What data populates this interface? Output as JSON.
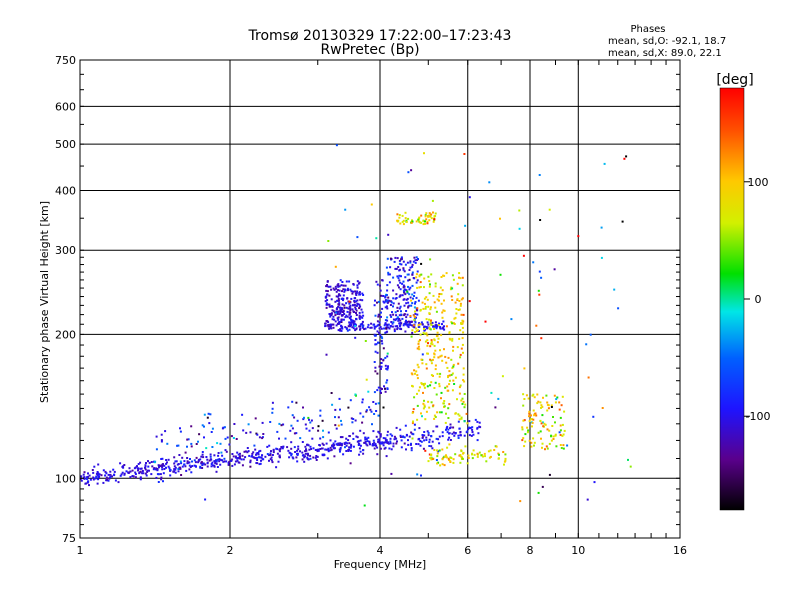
{
  "chart_data": {
    "type": "scatter",
    "title": "Tromsø 20130329 17:22:00–17:23:43",
    "subtitle": "RwPretec (Bp)",
    "xlabel": "Frequency [MHz]",
    "ylabel": "Stationary phase Virtual Height [km]",
    "x_scale": "log",
    "y_scale": "log",
    "xlim": [
      1,
      16
    ],
    "ylim": [
      75,
      750
    ],
    "x_ticks": [
      1,
      2,
      4,
      6,
      8,
      10,
      16
    ],
    "x_tick_labels": [
      "1",
      "2",
      "4",
      "6",
      "8",
      "10",
      "16"
    ],
    "y_ticks": [
      75,
      100,
      200,
      300,
      400,
      500,
      600,
      750
    ],
    "y_tick_labels": [
      "75",
      "100",
      "200",
      "300",
      "400",
      "500",
      "600",
      "750"
    ],
    "grid": true,
    "stats": {
      "heading": "Phases",
      "line_o": "mean, sd,O: -92.1, 18.7",
      "line_x": "mean, sd,X:  89.0, 22.1"
    },
    "colorbar": {
      "label": "[deg]",
      "range": [
        -180,
        180
      ],
      "ticks": [
        100,
        0,
        -100
      ],
      "tick_labels": [
        "100",
        "0",
        "-100"
      ]
    },
    "clusters": [
      {
        "name": "E-layer trace",
        "shape": "curve",
        "x0": 1.0,
        "x1": 4.2,
        "y0": 100,
        "y1": 120,
        "phase": -105,
        "phase_sd": 12,
        "count": 560,
        "spread": 0.022
      },
      {
        "name": "Lower diffuse band",
        "shape": "curve",
        "x0": 1.4,
        "x1": 4.0,
        "y0": 115,
        "y1": 140,
        "phase": -95,
        "phase_sd": 40,
        "count": 170,
        "spread": 0.07
      },
      {
        "name": "O-mode E cusp",
        "shape": "curve",
        "x0": 4.0,
        "x1": 6.4,
        "y0": 118,
        "y1": 128,
        "phase": -100,
        "phase_sd": 15,
        "count": 140,
        "spread": 0.03
      },
      {
        "name": "X-mode low trace",
        "shape": "curve",
        "x0": 5.0,
        "x1": 7.2,
        "y0": 110,
        "y1": 112,
        "phase": 80,
        "phase_sd": 25,
        "count": 90,
        "spread": 0.02
      },
      {
        "name": "F-layer O-mode blob",
        "shape": "blob",
        "x0": 3.1,
        "x1": 3.7,
        "y0": 205,
        "y1": 260,
        "phase": -110,
        "phase_sd": 12,
        "count": 260,
        "spread": 0
      },
      {
        "name": "F-layer O-mode base",
        "shape": "curve",
        "x0": 3.3,
        "x1": 5.4,
        "y0": 208,
        "y1": 208,
        "phase": -100,
        "phase_sd": 12,
        "count": 150,
        "spread": 0.015
      },
      {
        "name": "F-layer O-mode upper",
        "shape": "blob",
        "x0": 4.1,
        "x1": 4.8,
        "y0": 210,
        "y1": 290,
        "phase": -95,
        "phase_sd": 25,
        "count": 180,
        "spread": 0
      },
      {
        "name": "F-layer X-mode blob",
        "shape": "blob",
        "x0": 4.6,
        "x1": 5.9,
        "y0": 160,
        "y1": 270,
        "phase": 90,
        "phase_sd": 25,
        "count": 230,
        "spread": 0
      },
      {
        "name": "F-layer X-mode 350km",
        "shape": "blob",
        "x0": 4.3,
        "x1": 5.2,
        "y0": 340,
        "y1": 360,
        "phase": 80,
        "phase_sd": 25,
        "count": 60,
        "spread": 0
      },
      {
        "name": "Vertical spread near 4 MHz",
        "shape": "blob",
        "x0": 3.9,
        "x1": 4.15,
        "y0": 150,
        "y1": 260,
        "phase": -95,
        "phase_sd": 25,
        "count": 80,
        "spread": 0
      },
      {
        "name": "Mid band near 5-6 MHz",
        "shape": "blob",
        "x0": 4.6,
        "x1": 6.0,
        "y0": 130,
        "y1": 160,
        "phase": 75,
        "phase_sd": 30,
        "count": 90,
        "spread": 0
      },
      {
        "name": "8-9 MHz spread",
        "shape": "blob",
        "x0": 7.7,
        "x1": 9.4,
        "y0": 115,
        "y1": 150,
        "phase": 85,
        "phase_sd": 30,
        "count": 110,
        "spread": 0
      },
      {
        "name": "Scattered points",
        "shape": "blob",
        "x0": 3.0,
        "x1": 13.0,
        "y0": 85,
        "y1": 500,
        "phase": 0,
        "phase_sd": 110,
        "count": 100,
        "spread": 0
      }
    ]
  }
}
